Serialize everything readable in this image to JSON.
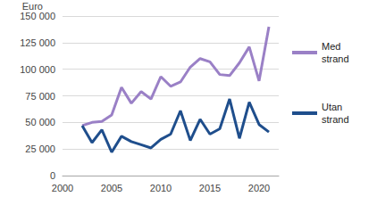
{
  "chart_data": {
    "type": "line",
    "y_label": "Euro",
    "x": [
      2002,
      2003,
      2004,
      2005,
      2006,
      2007,
      2008,
      2009,
      2010,
      2011,
      2012,
      2013,
      2014,
      2015,
      2016,
      2017,
      2018,
      2019,
      2020,
      2021
    ],
    "series": [
      {
        "name": "Med strand",
        "color": "#9a80c6",
        "values": [
          47000,
          50000,
          51000,
          57000,
          83000,
          68000,
          79000,
          72000,
          93000,
          84000,
          88000,
          102000,
          110000,
          107000,
          95000,
          94000,
          106000,
          121000,
          89000,
          140000
        ]
      },
      {
        "name": "Utan strand",
        "color": "#1f4e8c",
        "values": [
          47000,
          31000,
          43000,
          22000,
          37000,
          32000,
          29000,
          26000,
          34000,
          39000,
          61000,
          33000,
          53000,
          39000,
          44000,
          72000,
          35000,
          69000,
          48000,
          41000
        ]
      }
    ],
    "xlim": [
      2000,
      2022
    ],
    "xticks": [
      2000,
      2005,
      2010,
      2015,
      2020
    ],
    "ylim": [
      0,
      150000
    ],
    "yticks": [
      0,
      {
        "value": 25000,
        "label": "25 000"
      },
      {
        "value": 50000,
        "label": "50 000"
      },
      {
        "value": 75000,
        "label": "75 000"
      },
      {
        "value": 100000,
        "label": "100 000"
      },
      {
        "value": 125000,
        "label": "125 000"
      },
      {
        "value": 150000,
        "label": "150 000"
      }
    ],
    "grid": true,
    "legend": "right"
  }
}
